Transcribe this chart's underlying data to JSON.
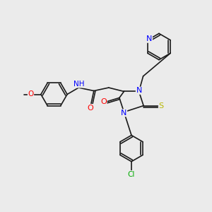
{
  "bg_color": "#ebebeb",
  "bond_color": "#1a1a1a",
  "atom_colors": {
    "N": "#0000ff",
    "O": "#ff0000",
    "S": "#b8b800",
    "Cl": "#00aa00",
    "C": "#1a1a1a",
    "H": "#666666"
  },
  "bond_width": 1.2,
  "figsize": [
    3.0,
    3.0
  ],
  "dpi": 100
}
